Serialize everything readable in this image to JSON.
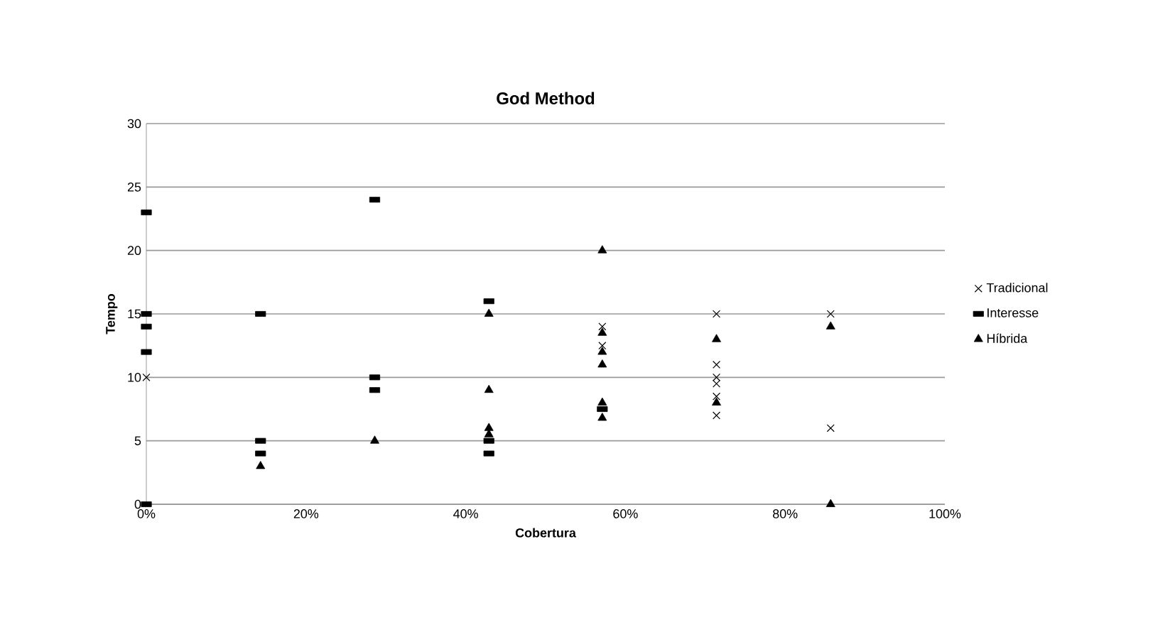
{
  "chart_data": {
    "type": "scatter",
    "title": "God Method",
    "xlabel": "Cobertura",
    "ylabel": "Tempo",
    "xlim": [
      0,
      100
    ],
    "ylim": [
      0,
      30
    ],
    "xticks": [
      {
        "value": 0,
        "label": "0%"
      },
      {
        "value": 20,
        "label": "20%"
      },
      {
        "value": 40,
        "label": "40%"
      },
      {
        "value": 60,
        "label": "60%"
      },
      {
        "value": 80,
        "label": "80%"
      },
      {
        "value": 100,
        "label": "100%"
      }
    ],
    "yticks": [
      0,
      5,
      10,
      15,
      20,
      25,
      30
    ],
    "grid": "y",
    "legend": "right",
    "series": [
      {
        "name": "Tradicional",
        "color": "#000000",
        "marker": "cross",
        "x": [
          0,
          57.1,
          57.1,
          71.4,
          71.4,
          71.4,
          71.4,
          71.4,
          71.4,
          85.7,
          85.7
        ],
        "values": [
          10,
          14,
          12.5,
          15,
          11,
          10,
          9.5,
          8.5,
          7,
          15,
          6
        ]
      },
      {
        "name": "Interesse",
        "color": "#000000",
        "marker": "square",
        "x": [
          0,
          0,
          0,
          0,
          0,
          14.3,
          14.3,
          14.3,
          28.6,
          28.6,
          28.6,
          42.9,
          42.9,
          42.9,
          57.1
        ],
        "values": [
          23,
          15,
          14,
          12,
          0,
          15,
          5,
          4,
          24,
          10,
          9,
          16,
          5,
          4,
          7.5
        ]
      },
      {
        "name": "Híbrida",
        "color": "#000000",
        "marker": "triangle",
        "x": [
          14.3,
          28.6,
          42.9,
          42.9,
          42.9,
          42.9,
          57.1,
          57.1,
          57.1,
          57.1,
          57.1,
          57.1,
          71.4,
          71.4,
          85.7,
          85.7
        ],
        "values": [
          3,
          5,
          15,
          9,
          6,
          5.5,
          20,
          13.5,
          12,
          11,
          8,
          6.8,
          13,
          8,
          14,
          0
        ]
      }
    ]
  }
}
